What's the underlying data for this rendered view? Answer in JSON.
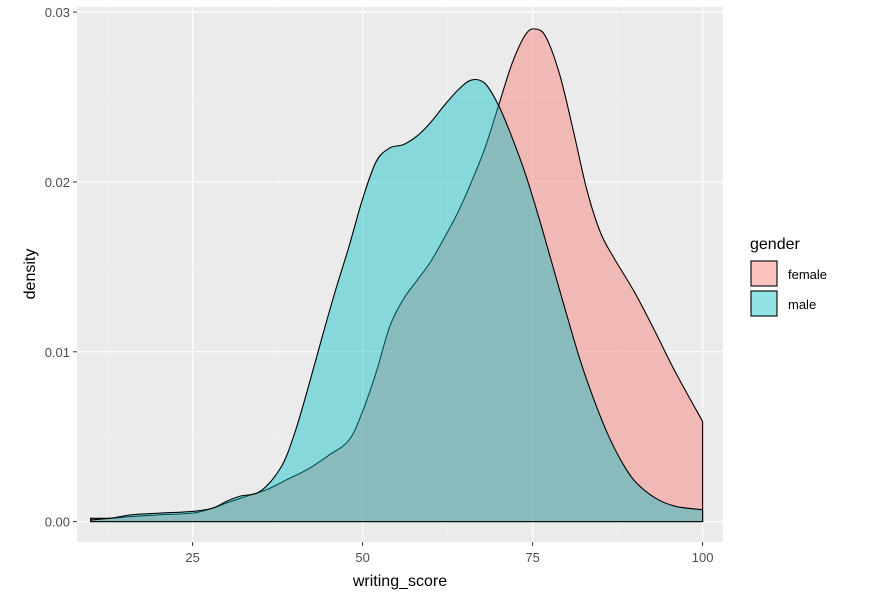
{
  "chart_data": {
    "type": "area",
    "subtype": "density",
    "xlabel": "writing_score",
    "ylabel": "density",
    "xlim": [
      8,
      103
    ],
    "ylim": [
      -0.0012,
      0.0303
    ],
    "x_ticks": [
      25,
      50,
      75,
      100
    ],
    "x_tick_labels": [
      "25",
      "50",
      "75",
      "100"
    ],
    "y_ticks": [
      0.0,
      0.01,
      0.02,
      0.03
    ],
    "y_tick_labels": [
      "0.00",
      "0.01",
      "0.02",
      "0.03"
    ],
    "grid": true,
    "legend": {
      "title": "gender",
      "placement": "right"
    },
    "series": [
      {
        "name": "female",
        "fill": "#F8766D",
        "points": [
          [
            10,
            0.0002
          ],
          [
            13,
            0.0002
          ],
          [
            16,
            0.0003
          ],
          [
            20,
            0.0004
          ],
          [
            25,
            0.0005
          ],
          [
            28,
            0.0008
          ],
          [
            30,
            0.0011
          ],
          [
            33,
            0.0015
          ],
          [
            36,
            0.0019
          ],
          [
            39,
            0.0025
          ],
          [
            42,
            0.0031
          ],
          [
            45,
            0.0039
          ],
          [
            48,
            0.0048
          ],
          [
            50,
            0.0065
          ],
          [
            52,
            0.0088
          ],
          [
            54,
            0.0115
          ],
          [
            56,
            0.0131
          ],
          [
            58,
            0.0142
          ],
          [
            60,
            0.0153
          ],
          [
            62,
            0.0167
          ],
          [
            64,
            0.0182
          ],
          [
            66,
            0.02
          ],
          [
            68,
            0.022
          ],
          [
            70,
            0.0245
          ],
          [
            72,
            0.027
          ],
          [
            74,
            0.0287
          ],
          [
            75.5,
            0.029
          ],
          [
            77,
            0.0285
          ],
          [
            79,
            0.0263
          ],
          [
            81,
            0.023
          ],
          [
            83,
            0.0195
          ],
          [
            85,
            0.017
          ],
          [
            87,
            0.0155
          ],
          [
            90,
            0.0135
          ],
          [
            93,
            0.0112
          ],
          [
            96,
            0.0088
          ],
          [
            100,
            0.0059
          ]
        ]
      },
      {
        "name": "male",
        "fill": "#00BFC4",
        "points": [
          [
            10,
            0.0001
          ],
          [
            13,
            0.0002
          ],
          [
            16,
            0.0004
          ],
          [
            20,
            0.0005
          ],
          [
            25,
            0.0006
          ],
          [
            28,
            0.0008
          ],
          [
            30,
            0.0012
          ],
          [
            32,
            0.0015
          ],
          [
            35,
            0.0018
          ],
          [
            38,
            0.0032
          ],
          [
            40,
            0.0052
          ],
          [
            42,
            0.0079
          ],
          [
            44,
            0.0108
          ],
          [
            46,
            0.0136
          ],
          [
            48,
            0.0162
          ],
          [
            50,
            0.019
          ],
          [
            52,
            0.0212
          ],
          [
            54,
            0.022
          ],
          [
            56,
            0.0222
          ],
          [
            58,
            0.0227
          ],
          [
            60,
            0.0235
          ],
          [
            62,
            0.0245
          ],
          [
            64,
            0.0254
          ],
          [
            66,
            0.026
          ],
          [
            68,
            0.0258
          ],
          [
            70,
            0.0245
          ],
          [
            72,
            0.0226
          ],
          [
            74,
            0.0204
          ],
          [
            76,
            0.0178
          ],
          [
            78,
            0.015
          ],
          [
            80,
            0.0122
          ],
          [
            82,
            0.0095
          ],
          [
            84,
            0.0072
          ],
          [
            86,
            0.0052
          ],
          [
            88,
            0.0036
          ],
          [
            90,
            0.0024
          ],
          [
            93,
            0.0014
          ],
          [
            96,
            0.0009
          ],
          [
            100,
            0.0007
          ]
        ]
      }
    ]
  }
}
